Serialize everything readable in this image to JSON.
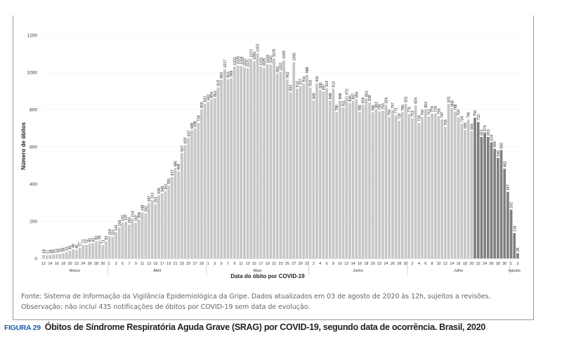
{
  "caption": {
    "figure_number": "FIGURA 29",
    "title": "Óbitos de Síndrome Respiratória Aguda Grave (SRAG) por COVID-19, segundo data de ocorrência. Brasil, 2020"
  },
  "notes": {
    "source": "Fonte: Sistema de Informação da Vigilância Epidemiológica da Gripe. Dados atualizados em 03 de agosto de 2020 às 12h, sujeitos a revisões.",
    "observation": "Observação: não inclui 435 notificações de óbitos por COVID-19 sem data de evolução."
  },
  "chart_data": {
    "type": "bar",
    "title": "",
    "xlabel": "Data do óbito por COVID-19",
    "ylabel": "Número de óbitos",
    "ylim": [
      0,
      1200
    ],
    "yticks": [
      "0",
      "200",
      "400",
      "600",
      "800",
      "1000",
      "1200"
    ],
    "grid": true,
    "legend": "none",
    "data_labels": true,
    "colors": {
      "bar": "#c6c6c6",
      "bar_recent": "#7f7f7f",
      "text": "#222222"
    },
    "recent_from": "21/07",
    "months": [
      {
        "name": "Março",
        "days": [
          12,
          13,
          14,
          15,
          16,
          17,
          18,
          19,
          20,
          21,
          22,
          23,
          24,
          25,
          26,
          27,
          28,
          29,
          30,
          31
        ],
        "values": [
          19,
          17,
          18,
          20,
          22,
          25,
          28,
          33,
          40,
          49,
          45,
          57,
          73,
          72,
          80,
          82,
          92,
          95,
          71,
          92
        ]
      },
      {
        "name": "Abril",
        "days": [
          1,
          2,
          3,
          4,
          5,
          6,
          7,
          8,
          9,
          10,
          11,
          12,
          13,
          14,
          15,
          16,
          17,
          18,
          19,
          20,
          21,
          22,
          23,
          24,
          25,
          26,
          27,
          28,
          29,
          30
        ],
        "values": [
          119,
          116,
          141,
          166,
          193,
          197,
          181,
          214,
          192,
          208,
          248,
          242,
          297,
          313,
          291,
          338,
          349,
          361,
          391,
          437,
          485,
          468,
          567,
          609,
          647,
          689,
          698,
          728,
          800,
          832
        ]
      },
      {
        "name": "Maio",
        "days": [
          1,
          2,
          3,
          4,
          5,
          6,
          7,
          8,
          9,
          10,
          11,
          12,
          13,
          14,
          15,
          16,
          17,
          18,
          19,
          20,
          21,
          22,
          23,
          24,
          25,
          26,
          27,
          28,
          29,
          30,
          31
        ],
        "values": [
          842,
          854,
          861,
          919,
          960,
          1017,
          963,
          969,
          1031,
          1036,
          1034,
          1027,
          1021,
          1073,
          1060,
          1103,
          1031,
          1025,
          1043,
          1041,
          1075,
          993,
          1002,
          1065,
          962,
          893,
          1055,
          912,
          927,
          941,
          988
        ]
      },
      {
        "name": "Junho",
        "days": [
          1,
          2,
          3,
          4,
          5,
          6,
          7,
          8,
          9,
          10,
          11,
          12,
          13,
          14,
          15,
          16,
          17,
          18,
          19,
          20,
          21,
          22,
          23,
          24,
          25,
          26,
          27,
          28,
          29,
          30
        ],
        "values": [
          918,
          849,
          941,
          906,
          897,
          914,
          848,
          912,
          786,
          848,
          811,
          872,
          836,
          847,
          856,
          785,
          826,
          861,
          838,
          785,
          802,
          790,
          793,
          826,
          760,
          797,
          771,
          739,
          786,
          831
        ]
      },
      {
        "name": "Julho",
        "days": [
          1,
          2,
          3,
          4,
          5,
          6,
          7,
          8,
          9,
          10,
          11,
          12,
          13,
          14,
          15,
          16,
          17,
          18,
          19,
          20,
          21,
          22,
          23,
          24,
          25,
          26,
          27,
          28,
          29,
          30,
          31
        ],
        "values": [
          776,
          753,
          824,
          728,
          760,
          802,
          762,
          778,
          778,
          766,
          747,
          706,
          831,
          808,
          788,
          759,
          724,
          690,
          746,
          684,
          756,
          733,
          653,
          676,
          653,
          624,
          589,
          540,
          582,
          482,
          357
        ]
      },
      {
        "name": "Agosto",
        "days": [
          1,
          2,
          3
        ],
        "values": [
          262,
          136,
          28
        ]
      }
    ]
  }
}
